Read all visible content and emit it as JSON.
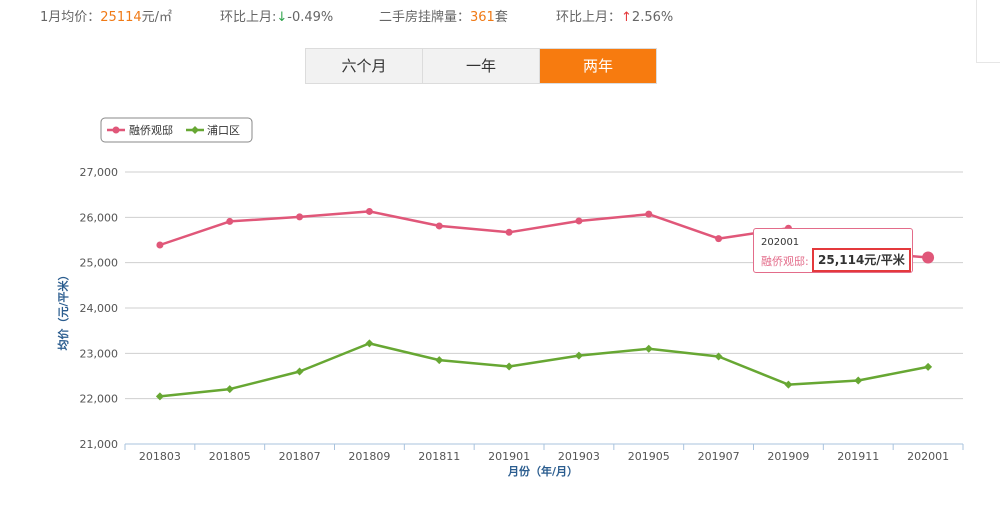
{
  "stats": {
    "avg_label": "1月均价：",
    "avg_value": "25114",
    "avg_unit": "元/㎡",
    "mom_label_1": "环比上月:",
    "mom_arrow_1": "↓",
    "mom_value_1": "-0.49%",
    "listing_label": "二手房挂牌量：",
    "listing_value": "361",
    "listing_unit": "套",
    "mom_label_2": "环比上月：",
    "mom_arrow_2": "↑",
    "mom_value_2": "2.56%"
  },
  "tabs": [
    {
      "label": "六个月",
      "active": false
    },
    {
      "label": "一年",
      "active": false
    },
    {
      "label": "两年",
      "active": true
    }
  ],
  "tooltip": {
    "date": "202001",
    "series_label": "融侨观邸:",
    "value": "25,114元/平米"
  },
  "colors": {
    "series1": "#e05779",
    "series2": "#67a733",
    "accent": "#f77b0f",
    "grid": "#cfcfcf",
    "axis": "#a9c3de",
    "axis_title": "#2b5d8f"
  },
  "chart_data": {
    "type": "line",
    "xlabel": "月份（年/月）",
    "ylabel": "均价（元/平米）",
    "ylim": [
      21000,
      27000
    ],
    "yticks": [
      "21,000",
      "22,000",
      "23,000",
      "24,000",
      "25,000",
      "26,000",
      "27,000"
    ],
    "categories": [
      "201803",
      "201805",
      "201807",
      "201809",
      "201811",
      "201901",
      "201903",
      "201905",
      "201907",
      "201909",
      "201911",
      "202001"
    ],
    "legend_position": "top-left",
    "grid": true,
    "series": [
      {
        "name": "融侨观邸",
        "values": [
          25390,
          25910,
          26010,
          26130,
          25810,
          25670,
          25920,
          26070,
          25530,
          25760,
          25240,
          25114
        ]
      },
      {
        "name": "浦口区",
        "values": [
          22050,
          22210,
          22600,
          23220,
          22850,
          22710,
          22950,
          23100,
          22930,
          22310,
          22400,
          22700
        ]
      }
    ]
  }
}
